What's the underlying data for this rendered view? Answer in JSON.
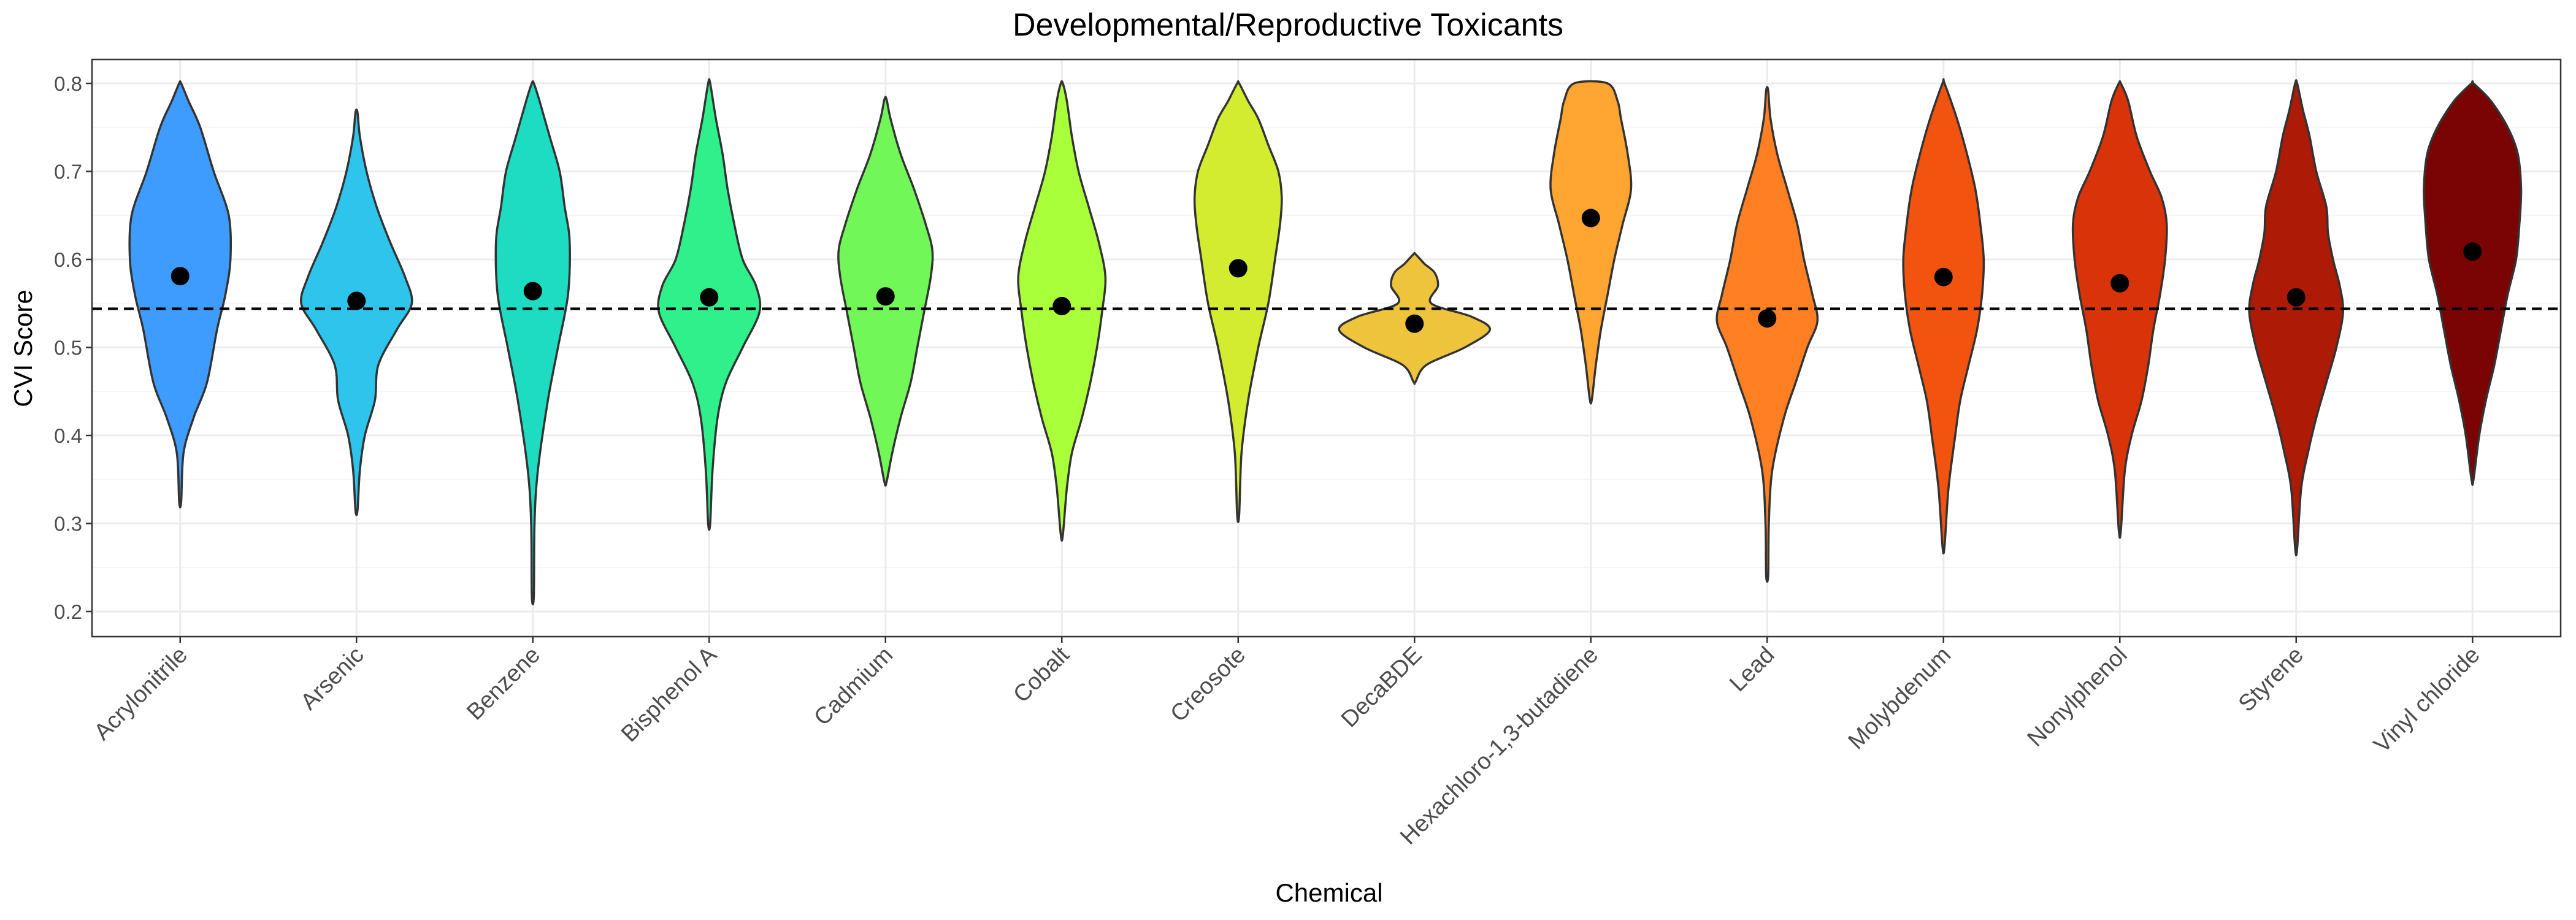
{
  "chart_data": {
    "type": "violin",
    "title": "Developmental/Reproductive Toxicants",
    "xlabel": "Chemical",
    "ylabel": "CVI Score",
    "ylim": [
      0.17,
      0.83
    ],
    "yticks": [
      "0.2",
      "0.3",
      "0.4",
      "0.5",
      "0.6",
      "0.7",
      "0.8"
    ],
    "reference_line": {
      "y": 0.544,
      "style": "dashed"
    },
    "grid": true,
    "categories": [
      "Acrylonitrile",
      "Arsenic",
      "Benzene",
      "Bisphenol A",
      "Cadmium",
      "Cobalt",
      "Creosote",
      "DecaBDE",
      "Hexachloro-1,3-butadiene",
      "Lead",
      "Molybdenum",
      "Nonylphenol",
      "Styrene",
      "Vinyl chloride"
    ],
    "series": [
      {
        "category": "Acrylonitrile",
        "mean": 0.581,
        "min": 0.325,
        "max": 0.8,
        "color": "#3f9cff",
        "profile": [
          [
            0.325,
            0.006
          ],
          [
            0.38,
            0.02
          ],
          [
            0.42,
            0.08
          ],
          [
            0.46,
            0.16
          ],
          [
            0.52,
            0.22
          ],
          [
            0.56,
            0.27
          ],
          [
            0.6,
            0.3
          ],
          [
            0.65,
            0.29
          ],
          [
            0.7,
            0.2
          ],
          [
            0.75,
            0.12
          ],
          [
            0.78,
            0.05
          ],
          [
            0.8,
            0.006
          ]
        ]
      },
      {
        "category": "Arsenic",
        "mean": 0.553,
        "min": 0.315,
        "max": 0.767,
        "color": "#2ec4ec",
        "profile": [
          [
            0.315,
            0.006
          ],
          [
            0.36,
            0.02
          ],
          [
            0.4,
            0.05
          ],
          [
            0.44,
            0.11
          ],
          [
            0.48,
            0.13
          ],
          [
            0.52,
            0.24
          ],
          [
            0.55,
            0.33
          ],
          [
            0.58,
            0.29
          ],
          [
            0.62,
            0.2
          ],
          [
            0.66,
            0.12
          ],
          [
            0.7,
            0.06
          ],
          [
            0.74,
            0.02
          ],
          [
            0.767,
            0.006
          ]
        ]
      },
      {
        "category": "Benzene",
        "mean": 0.564,
        "min": 0.218,
        "max": 0.8,
        "color": "#1edcc2",
        "profile": [
          [
            0.218,
            0.006
          ],
          [
            0.3,
            0.01
          ],
          [
            0.36,
            0.03
          ],
          [
            0.44,
            0.09
          ],
          [
            0.5,
            0.15
          ],
          [
            0.56,
            0.21
          ],
          [
            0.62,
            0.22
          ],
          [
            0.66,
            0.19
          ],
          [
            0.7,
            0.16
          ],
          [
            0.74,
            0.1
          ],
          [
            0.78,
            0.04
          ],
          [
            0.8,
            0.006
          ]
        ]
      },
      {
        "category": "Bisphenol A",
        "mean": 0.557,
        "min": 0.3,
        "max": 0.8,
        "color": "#30f08c",
        "profile": [
          [
            0.3,
            0.006
          ],
          [
            0.36,
            0.02
          ],
          [
            0.42,
            0.05
          ],
          [
            0.46,
            0.1
          ],
          [
            0.5,
            0.2
          ],
          [
            0.54,
            0.3
          ],
          [
            0.57,
            0.28
          ],
          [
            0.6,
            0.2
          ],
          [
            0.64,
            0.15
          ],
          [
            0.68,
            0.11
          ],
          [
            0.72,
            0.08
          ],
          [
            0.76,
            0.04
          ],
          [
            0.8,
            0.006
          ]
        ]
      },
      {
        "category": "Cadmium",
        "mean": 0.558,
        "min": 0.347,
        "max": 0.782,
        "color": "#72f759",
        "profile": [
          [
            0.347,
            0.006
          ],
          [
            0.38,
            0.04
          ],
          [
            0.42,
            0.09
          ],
          [
            0.46,
            0.15
          ],
          [
            0.5,
            0.19
          ],
          [
            0.54,
            0.23
          ],
          [
            0.58,
            0.27
          ],
          [
            0.61,
            0.28
          ],
          [
            0.64,
            0.24
          ],
          [
            0.68,
            0.17
          ],
          [
            0.72,
            0.09
          ],
          [
            0.76,
            0.03
          ],
          [
            0.782,
            0.006
          ]
        ]
      },
      {
        "category": "Cobalt",
        "mean": 0.547,
        "min": 0.287,
        "max": 0.8,
        "color": "#aaff3b",
        "profile": [
          [
            0.287,
            0.006
          ],
          [
            0.34,
            0.03
          ],
          [
            0.38,
            0.06
          ],
          [
            0.42,
            0.12
          ],
          [
            0.46,
            0.17
          ],
          [
            0.5,
            0.21
          ],
          [
            0.54,
            0.24
          ],
          [
            0.58,
            0.26
          ],
          [
            0.62,
            0.22
          ],
          [
            0.66,
            0.16
          ],
          [
            0.7,
            0.1
          ],
          [
            0.74,
            0.06
          ],
          [
            0.78,
            0.03
          ],
          [
            0.8,
            0.006
          ]
        ]
      },
      {
        "category": "Creosote",
        "mean": 0.59,
        "min": 0.31,
        "max": 0.8,
        "color": "#d4ec30",
        "profile": [
          [
            0.31,
            0.006
          ],
          [
            0.38,
            0.02
          ],
          [
            0.44,
            0.06
          ],
          [
            0.5,
            0.12
          ],
          [
            0.55,
            0.18
          ],
          [
            0.6,
            0.22
          ],
          [
            0.64,
            0.25
          ],
          [
            0.67,
            0.26
          ],
          [
            0.7,
            0.24
          ],
          [
            0.73,
            0.18
          ],
          [
            0.76,
            0.12
          ],
          [
            0.78,
            0.06
          ],
          [
            0.8,
            0.006
          ]
        ]
      },
      {
        "category": "DecaBDE",
        "mean": 0.527,
        "min": 0.461,
        "max": 0.606,
        "color": "#eec43c",
        "profile": [
          [
            0.461,
            0.006
          ],
          [
            0.48,
            0.07
          ],
          [
            0.5,
            0.3
          ],
          [
            0.52,
            0.45
          ],
          [
            0.535,
            0.34
          ],
          [
            0.55,
            0.1
          ],
          [
            0.57,
            0.14
          ],
          [
            0.585,
            0.12
          ],
          [
            0.595,
            0.06
          ],
          [
            0.606,
            0.006
          ]
        ]
      },
      {
        "category": "Hexachloro-1,3-butadiene",
        "mean": 0.647,
        "min": 0.441,
        "max": 0.8,
        "color": "#ffa531",
        "profile": [
          [
            0.441,
            0.006
          ],
          [
            0.48,
            0.03
          ],
          [
            0.52,
            0.06
          ],
          [
            0.56,
            0.1
          ],
          [
            0.6,
            0.14
          ],
          [
            0.64,
            0.19
          ],
          [
            0.68,
            0.24
          ],
          [
            0.72,
            0.22
          ],
          [
            0.76,
            0.18
          ],
          [
            0.78,
            0.16
          ],
          [
            0.8,
            0.1
          ]
        ]
      },
      {
        "category": "Lead",
        "mean": 0.533,
        "min": 0.241,
        "max": 0.792,
        "color": "#ff7f22",
        "profile": [
          [
            0.241,
            0.006
          ],
          [
            0.3,
            0.01
          ],
          [
            0.36,
            0.03
          ],
          [
            0.42,
            0.1
          ],
          [
            0.46,
            0.17
          ],
          [
            0.5,
            0.24
          ],
          [
            0.53,
            0.3
          ],
          [
            0.56,
            0.27
          ],
          [
            0.6,
            0.22
          ],
          [
            0.64,
            0.18
          ],
          [
            0.68,
            0.12
          ],
          [
            0.72,
            0.06
          ],
          [
            0.76,
            0.02
          ],
          [
            0.792,
            0.006
          ]
        ]
      },
      {
        "category": "Molybdenum",
        "mean": 0.58,
        "min": 0.274,
        "max": 0.8,
        "color": "#f2530f",
        "profile": [
          [
            0.274,
            0.006
          ],
          [
            0.34,
            0.03
          ],
          [
            0.4,
            0.07
          ],
          [
            0.44,
            0.1
          ],
          [
            0.48,
            0.15
          ],
          [
            0.52,
            0.2
          ],
          [
            0.56,
            0.23
          ],
          [
            0.6,
            0.24
          ],
          [
            0.64,
            0.22
          ],
          [
            0.68,
            0.19
          ],
          [
            0.72,
            0.14
          ],
          [
            0.76,
            0.08
          ],
          [
            0.8,
            0.006
          ]
        ]
      },
      {
        "category": "Nonylphenol",
        "mean": 0.573,
        "min": 0.292,
        "max": 0.8,
        "color": "#d9330a",
        "profile": [
          [
            0.292,
            0.006
          ],
          [
            0.36,
            0.03
          ],
          [
            0.4,
            0.07
          ],
          [
            0.44,
            0.13
          ],
          [
            0.48,
            0.17
          ],
          [
            0.52,
            0.2
          ],
          [
            0.56,
            0.24
          ],
          [
            0.6,
            0.27
          ],
          [
            0.64,
            0.28
          ],
          [
            0.67,
            0.25
          ],
          [
            0.7,
            0.18
          ],
          [
            0.74,
            0.1
          ],
          [
            0.78,
            0.05
          ],
          [
            0.8,
            0.006
          ]
        ]
      },
      {
        "category": "Styrene",
        "mean": 0.557,
        "min": 0.272,
        "max": 0.8,
        "color": "#ad1a05",
        "profile": [
          [
            0.272,
            0.006
          ],
          [
            0.34,
            0.03
          ],
          [
            0.38,
            0.07
          ],
          [
            0.42,
            0.12
          ],
          [
            0.46,
            0.18
          ],
          [
            0.5,
            0.24
          ],
          [
            0.54,
            0.28
          ],
          [
            0.57,
            0.26
          ],
          [
            0.6,
            0.22
          ],
          [
            0.63,
            0.19
          ],
          [
            0.66,
            0.18
          ],
          [
            0.7,
            0.12
          ],
          [
            0.74,
            0.08
          ],
          [
            0.77,
            0.04
          ],
          [
            0.8,
            0.006
          ]
        ]
      },
      {
        "category": "Vinyl chloride",
        "mean": 0.609,
        "min": 0.35,
        "max": 0.8,
        "color": "#7a0403",
        "profile": [
          [
            0.35,
            0.006
          ],
          [
            0.4,
            0.04
          ],
          [
            0.44,
            0.08
          ],
          [
            0.48,
            0.13
          ],
          [
            0.52,
            0.17
          ],
          [
            0.56,
            0.21
          ],
          [
            0.6,
            0.26
          ],
          [
            0.64,
            0.28
          ],
          [
            0.68,
            0.29
          ],
          [
            0.72,
            0.27
          ],
          [
            0.75,
            0.21
          ],
          [
            0.78,
            0.11
          ],
          [
            0.8,
            0.006
          ]
        ]
      }
    ]
  }
}
